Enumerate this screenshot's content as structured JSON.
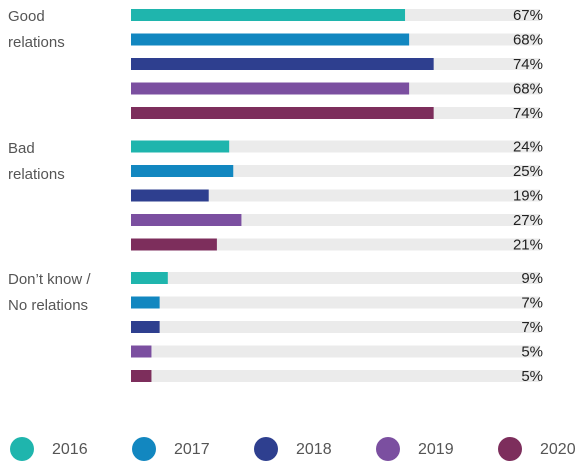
{
  "chart_data": {
    "type": "bar",
    "orientation": "horizontal",
    "categories": [
      "Good\nrelations",
      "Bad\nrelations",
      "Don’t know /\nNo relations"
    ],
    "xlim": [
      0,
      100
    ],
    "track_color": "#ebebeb",
    "legend": "bottom",
    "series": [
      {
        "name": "2016",
        "color": "#1fb5ad",
        "values": [
          67,
          24,
          9
        ],
        "value_labels": [
          "67%",
          "24%",
          "9%"
        ]
      },
      {
        "name": "2017",
        "color": "#1287c0",
        "values": [
          68,
          25,
          7
        ],
        "value_labels": [
          "68%",
          "25%",
          "7%"
        ]
      },
      {
        "name": "2018",
        "color": "#2e3f8f",
        "values": [
          74,
          19,
          7
        ],
        "value_labels": [
          "74%",
          "19%",
          "7%"
        ]
      },
      {
        "name": "2019",
        "color": "#7b4fa0",
        "values": [
          68,
          27,
          5
        ],
        "value_labels": [
          "68%",
          "27%",
          "5%"
        ]
      },
      {
        "name": "2020",
        "color": "#7d2e5c",
        "values": [
          74,
          21,
          5
        ],
        "value_labels": [
          "74%",
          "21%",
          "5%"
        ]
      }
    ]
  }
}
